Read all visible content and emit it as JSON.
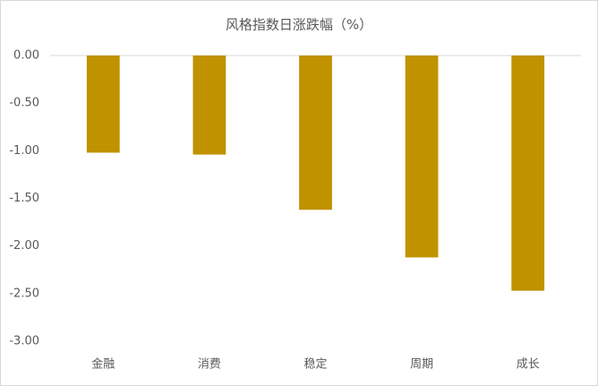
{
  "chart_data": {
    "type": "bar",
    "title": "风格指数日涨跌幅（%）",
    "categories": [
      "金融",
      "消费",
      "稳定",
      "周期",
      "成长"
    ],
    "values": [
      -1.02,
      -1.04,
      -1.62,
      -2.12,
      -2.47
    ],
    "color": "#c09200",
    "ylim": [
      -3,
      0
    ],
    "yticks": [
      {
        "value": 0,
        "label": "0.00"
      },
      {
        "value": -0.5,
        "label": "-0.50"
      },
      {
        "value": -1,
        "label": "-1.00"
      },
      {
        "value": -1.5,
        "label": "-1.50"
      },
      {
        "value": -2,
        "label": "-2.00"
      },
      {
        "value": -2.5,
        "label": "-2.50"
      },
      {
        "value": -3,
        "label": "-3.00"
      }
    ],
    "grid": false
  }
}
